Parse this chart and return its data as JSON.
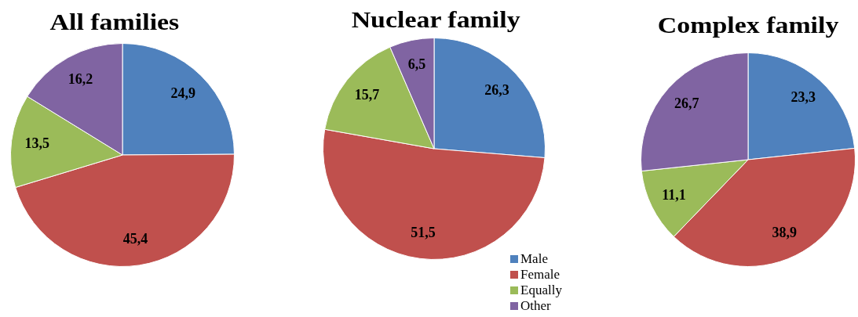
{
  "chart_data": [
    {
      "type": "pie",
      "title": "All families",
      "categories": [
        null,
        null,
        null,
        null
      ],
      "values": [
        24.9,
        45.4,
        13.5,
        16.2
      ],
      "colors": [
        "#4f81bd",
        "#c0504d",
        "#9bbb59",
        "#8064a2"
      ],
      "value_labels": [
        "24,9",
        "45,4",
        "13,5",
        "16,2"
      ]
    },
    {
      "type": "pie",
      "title": "Nuclear family",
      "categories": [
        "Male",
        "Female",
        "Equally",
        "Other"
      ],
      "values": [
        26.3,
        51.5,
        15.7,
        6.5
      ],
      "colors": [
        "#4f81bd",
        "#c0504d",
        "#9bbb59",
        "#8064a2"
      ],
      "value_labels": [
        "26,3",
        "51,5",
        "15,7",
        "6,5"
      ],
      "legend": "bottom right"
    },
    {
      "type": "pie",
      "title": "Complex family",
      "categories": [
        null,
        null,
        null,
        null
      ],
      "values": [
        23.3,
        38.9,
        11.1,
        26.7
      ],
      "colors": [
        "#4f81bd",
        "#c0504d",
        "#9bbb59",
        "#8064a2"
      ],
      "value_labels": [
        "23,3",
        "38,9",
        "11,1",
        "26,7"
      ]
    }
  ]
}
